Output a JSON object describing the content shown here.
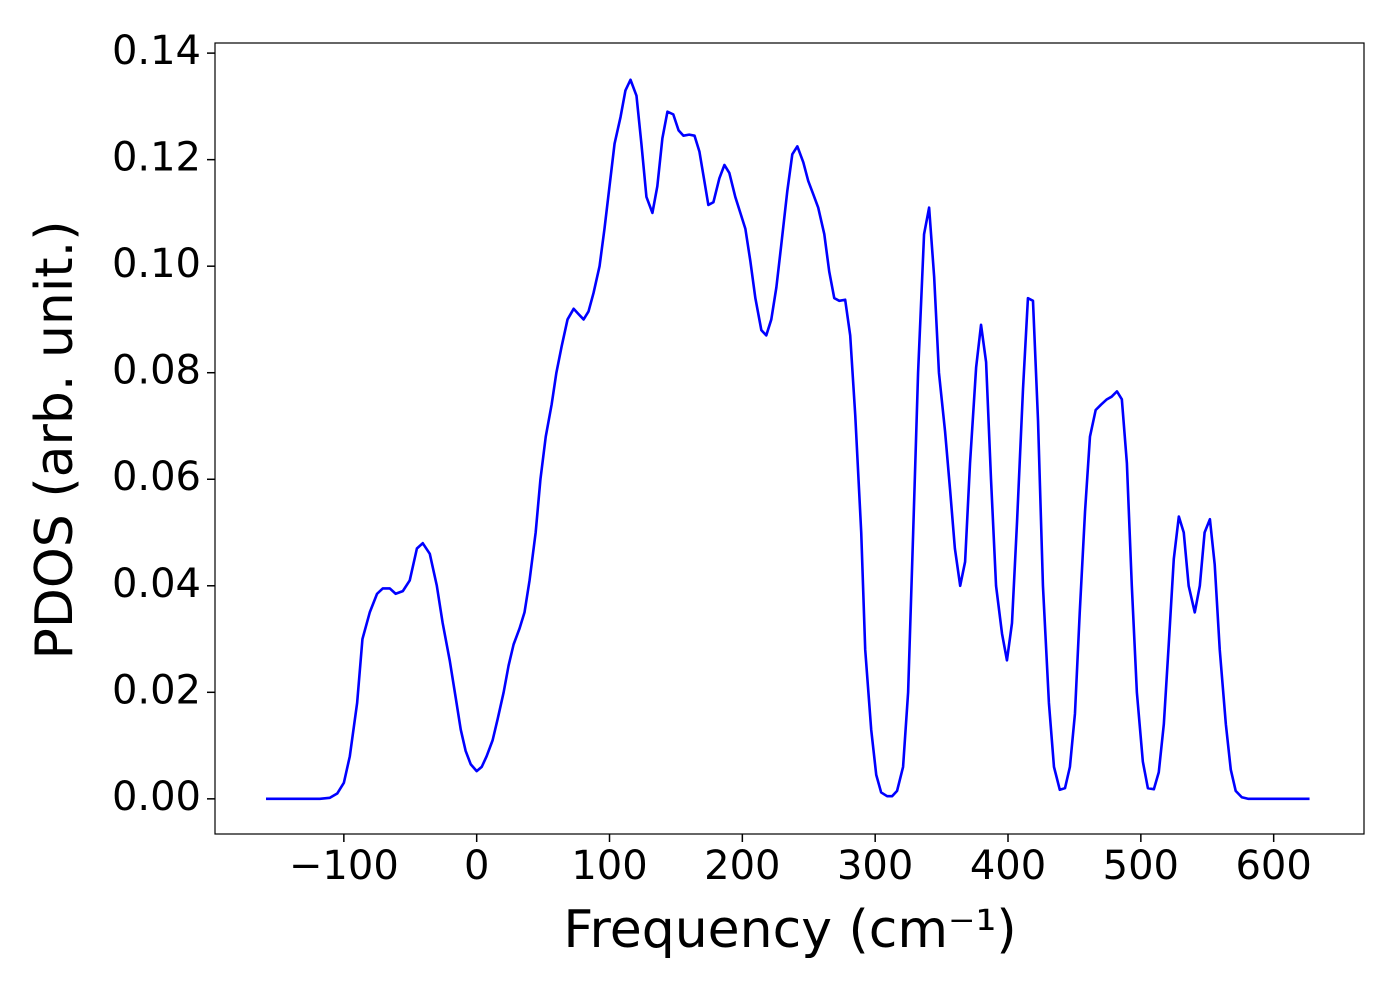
{
  "chart_data": {
    "type": "line",
    "xlabel": "Frequency (cm⁻¹)",
    "ylabel": "PDOS (arb. unit.)",
    "xlim": [
      -197,
      668
    ],
    "ylim": [
      -0.0066,
      0.1419
    ],
    "xticks": [
      {
        "value": -100,
        "label": "−100"
      },
      0,
      100,
      200,
      300,
      400,
      500,
      600
    ],
    "yticks": [
      {
        "value": 0,
        "label": "0.00"
      },
      0.02,
      0.04,
      0.06,
      0.08,
      {
        "value": 0.1,
        "label": "0.10"
      },
      0.12,
      0.14
    ],
    "grid": false,
    "series": [
      {
        "name": "PDOS",
        "color": "#0000ff",
        "x": [
          -158.6,
          -118,
          -110.5,
          -105,
          -100,
          -95.5,
          -90,
          -86,
          -80.5,
          -75,
          -70.7,
          -65.4,
          -61,
          -55.6,
          -50.4,
          -45,
          -40.6,
          -35.3,
          -30,
          -25.6,
          -20.3,
          -15.8,
          -12,
          -8.3,
          -4.5,
          0,
          3.8,
          7.5,
          12,
          15.8,
          20.3,
          24,
          27.8,
          32.3,
          36,
          39.8,
          44.4,
          48,
          52,
          56.4,
          60,
          64,
          68.4,
          73,
          76.7,
          80.5,
          84.2,
          88,
          92.5,
          96.2,
          100,
          103.8,
          108.3,
          112,
          115.8,
          120.3,
          124,
          127.8,
          132.3,
          136,
          139.8,
          143.6,
          148,
          152,
          155.6,
          160,
          164,
          167.7,
          171.4,
          174.4,
          178.2,
          182.7,
          186.5,
          190.2,
          194.7,
          198.5,
          202.3,
          206,
          209.8,
          214.3,
          218,
          221.8,
          225.6,
          229.3,
          233.8,
          237.6,
          241.4,
          245.9,
          249.6,
          253.4,
          257.1,
          261.7,
          265.4,
          269.2,
          273,
          277.4,
          281.2,
          285,
          289.5,
          292.5,
          297,
          300.8,
          304.5,
          309,
          312.8,
          316.5,
          321,
          324.8,
          328.6,
          332.3,
          336.8,
          340.6,
          344.4,
          348,
          352.6,
          356.4,
          360,
          364,
          367.7,
          371.4,
          376,
          379.7,
          383.5,
          387.2,
          391,
          395.5,
          399.2,
          403,
          406.8,
          411.3,
          415,
          418.8,
          422.6,
          426.3,
          430.8,
          434.6,
          439,
          442.9,
          446.6,
          450.4,
          454,
          458,
          461.7,
          466,
          470,
          474.4,
          478,
          482,
          485.7,
          489.5,
          493.2,
          497,
          501.5,
          505.3,
          509.8,
          513.5,
          517.3,
          521,
          524.8,
          528.6,
          532.3,
          536,
          540.6,
          544.4,
          548,
          552,
          555.6,
          559.4,
          564,
          567.7,
          571.4,
          576,
          581,
          627
        ],
        "values": [
          0,
          0,
          0.0002,
          0.001,
          0.003,
          0.008,
          0.018,
          0.03,
          0.035,
          0.0385,
          0.0395,
          0.0395,
          0.0385,
          0.039,
          0.041,
          0.047,
          0.048,
          0.046,
          0.04,
          0.033,
          0.026,
          0.019,
          0.013,
          0.009,
          0.0065,
          0.0052,
          0.006,
          0.008,
          0.011,
          0.015,
          0.02,
          0.025,
          0.029,
          0.032,
          0.035,
          0.041,
          0.05,
          0.06,
          0.068,
          0.074,
          0.08,
          0.085,
          0.09,
          0.092,
          0.091,
          0.09,
          0.0915,
          0.095,
          0.1,
          0.107,
          0.115,
          0.123,
          0.128,
          0.133,
          0.135,
          0.132,
          0.123,
          0.113,
          0.11,
          0.115,
          0.124,
          0.129,
          0.1285,
          0.1255,
          0.1245,
          0.1247,
          0.1245,
          0.1215,
          0.116,
          0.1115,
          0.112,
          0.1165,
          0.119,
          0.1175,
          0.113,
          0.11,
          0.107,
          0.101,
          0.094,
          0.088,
          0.087,
          0.09,
          0.096,
          0.104,
          0.114,
          0.121,
          0.1225,
          0.1195,
          0.116,
          0.1135,
          0.111,
          0.106,
          0.099,
          0.094,
          0.0935,
          0.0937,
          0.087,
          0.072,
          0.05,
          0.028,
          0.013,
          0.0045,
          0.0012,
          0.0005,
          0.0005,
          0.0015,
          0.006,
          0.02,
          0.05,
          0.08,
          0.106,
          0.111,
          0.098,
          0.08,
          0.069,
          0.058,
          0.047,
          0.04,
          0.0445,
          0.063,
          0.081,
          0.089,
          0.082,
          0.06,
          0.04,
          0.031,
          0.026,
          0.033,
          0.052,
          0.077,
          0.094,
          0.0935,
          0.071,
          0.04,
          0.018,
          0.006,
          0.0017,
          0.002,
          0.006,
          0.016,
          0.035,
          0.054,
          0.068,
          0.073,
          0.074,
          0.075,
          0.0755,
          0.0765,
          0.075,
          0.063,
          0.04,
          0.02,
          0.007,
          0.002,
          0.0018,
          0.005,
          0.014,
          0.029,
          0.045,
          0.053,
          0.05,
          0.04,
          0.035,
          0.04,
          0.05,
          0.0525,
          0.044,
          0.028,
          0.014,
          0.0055,
          0.0015,
          0.0003,
          0,
          0
        ]
      }
    ]
  }
}
